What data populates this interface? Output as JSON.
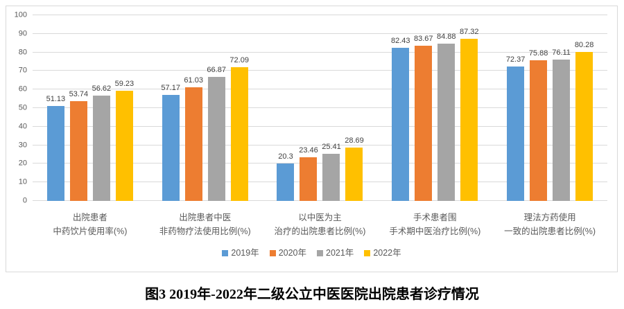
{
  "title": "图3 2019年-2022年二级公立中医医院出院患者诊疗情况",
  "chart_data": {
    "type": "bar",
    "categories": [
      [
        "出院患者",
        "中药饮片使用率(%)"
      ],
      [
        "出院患者中医",
        "非药物疗法使用比例(%)"
      ],
      [
        "以中医为主",
        "治疗的出院患者比例(%)"
      ],
      [
        "手术患者围",
        "手术期中医治疗比例(%)"
      ],
      [
        "理法方药使用",
        "一致的出院患者比例(%)"
      ]
    ],
    "series": [
      {
        "name": "2019年",
        "color": "#5B9BD5",
        "values": [
          51.13,
          57.17,
          20.3,
          82.43,
          72.37
        ]
      },
      {
        "name": "2020年",
        "color": "#ED7D31",
        "values": [
          53.74,
          61.03,
          23.46,
          83.67,
          75.88
        ]
      },
      {
        "name": "2021年",
        "color": "#A5A5A5",
        "values": [
          56.62,
          66.87,
          25.41,
          84.88,
          76.11
        ]
      },
      {
        "name": "2022年",
        "color": "#FFC000",
        "values": [
          59.23,
          72.09,
          28.69,
          87.32,
          80.28
        ]
      }
    ],
    "value_labels": [
      [
        "51.13",
        "57.17",
        "20.3",
        "82.43",
        "72.37"
      ],
      [
        "53.74",
        "61.03",
        "23.46",
        "83.67",
        "75.88"
      ],
      [
        "56.62",
        "66.87",
        "25.41",
        "84.88",
        "76.11"
      ],
      [
        "59.23",
        "72.09",
        "28.69",
        "87.32",
        "80.28"
      ]
    ],
    "ylim": [
      0,
      100
    ],
    "ytick_step": 10,
    "grid": true,
    "legend_position": "bottom",
    "colors": {
      "gridline": "#D9D9D9",
      "axis_text": "#595959",
      "data_label_text": "#404040",
      "title_text": "#000000"
    }
  }
}
